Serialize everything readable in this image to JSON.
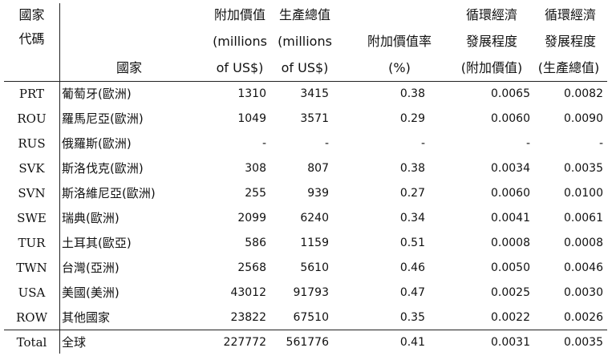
{
  "header": {
    "code_line1": "國家",
    "code_line2": "代碼",
    "country": "國家",
    "va_line1": "附加價值",
    "va_line2": "(millions",
    "va_line3": "of US$)",
    "prod_line1": "生產總值",
    "prod_line2": "(millions",
    "prod_line3": "of US$)",
    "rate_line1": "附加價值率",
    "rate_line2": "(%)",
    "ce_va_line1": "循環經濟",
    "ce_va_line2": "發展程度",
    "ce_va_line3": "(附加價值)",
    "ce_prod_line1": "循環經濟",
    "ce_prod_line2": "發展程度",
    "ce_prod_line3": "(生產總值)"
  },
  "rows": [
    {
      "code": "PRT",
      "country": "葡萄牙(歐洲)",
      "va": "1310",
      "prod": "3415",
      "rate": "0.38",
      "ce_va": "0.0065",
      "ce_prod": "0.0082"
    },
    {
      "code": "ROU",
      "country": "羅馬尼亞(歐洲)",
      "va": "1049",
      "prod": "3571",
      "rate": "0.29",
      "ce_va": "0.0060",
      "ce_prod": "0.0090"
    },
    {
      "code": "RUS",
      "country": "俄羅斯(歐洲)",
      "va": "-",
      "prod": "-",
      "rate": "-",
      "ce_va": "-",
      "ce_prod": "-"
    },
    {
      "code": "SVK",
      "country": "斯洛伐克(歐洲)",
      "va": "308",
      "prod": "807",
      "rate": "0.38",
      "ce_va": "0.0034",
      "ce_prod": "0.0035"
    },
    {
      "code": "SVN",
      "country": "斯洛維尼亞(歐洲)",
      "va": "255",
      "prod": "939",
      "rate": "0.27",
      "ce_va": "0.0060",
      "ce_prod": "0.0100"
    },
    {
      "code": "SWE",
      "country": "瑞典(歐洲)",
      "va": "2099",
      "prod": "6240",
      "rate": "0.34",
      "ce_va": "0.0041",
      "ce_prod": "0.0061"
    },
    {
      "code": "TUR",
      "country": "土耳其(歐亞)",
      "va": "586",
      "prod": "1159",
      "rate": "0.51",
      "ce_va": "0.0008",
      "ce_prod": "0.0008"
    },
    {
      "code": "TWN",
      "country": "台灣(亞洲)",
      "va": "2568",
      "prod": "5610",
      "rate": "0.46",
      "ce_va": "0.0050",
      "ce_prod": "0.0046"
    },
    {
      "code": "USA",
      "country": "美國(美洲)",
      "va": "43012",
      "prod": "91793",
      "rate": "0.47",
      "ce_va": "0.0025",
      "ce_prod": "0.0030"
    },
    {
      "code": "ROW",
      "country": "其他國家",
      "va": "23822",
      "prod": "67510",
      "rate": "0.35",
      "ce_va": "0.0022",
      "ce_prod": "0.0026"
    }
  ],
  "total": {
    "code": "Total",
    "country": "全球",
    "va": "227772",
    "prod": "561776",
    "rate": "0.41",
    "ce_va": "0.0031",
    "ce_prod": "0.0035"
  }
}
